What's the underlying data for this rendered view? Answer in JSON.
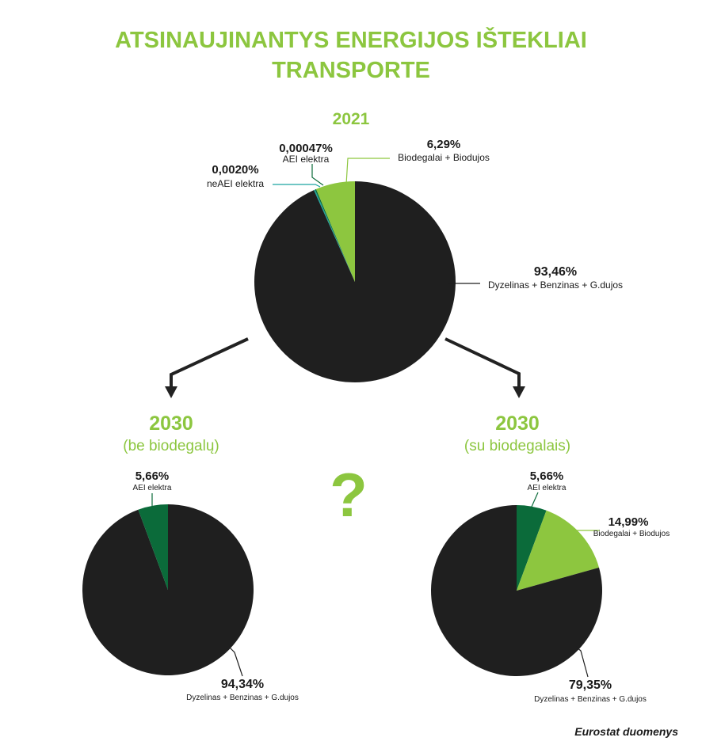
{
  "title_line1": "ATSINAUJINANTYS ENERGIJOS IŠTEKLIAI",
  "title_line2": "TRANSPORTE",
  "source": "Eurostat duomenys",
  "question_mark": "?",
  "colors": {
    "title_green": "#8cc63f",
    "fossil": "#1f1f1f",
    "biofuel": "#8dc63f",
    "renewable_electricity": "#0b6b3a",
    "non_renewable_electricity": "#1aa5a0",
    "arrow": "#222222"
  },
  "chart_data": [
    {
      "type": "pie",
      "title": "2021",
      "subtitle": "",
      "slices": [
        {
          "key": "ael",
          "pct_label": "0,00047%",
          "label": "AEI elektra",
          "value": 0.00047,
          "color": "#0b6b3a"
        },
        {
          "key": "neael",
          "pct_label": "0,0020%",
          "label": "neAEI elektra",
          "value": 0.002,
          "color": "#1aa5a0"
        },
        {
          "key": "bio",
          "pct_label": "6,29%",
          "label": "Biodegalai + Biodujos",
          "value": 6.29,
          "color": "#8dc63f"
        },
        {
          "key": "fossil",
          "pct_label": "93,46%",
          "label": "Dyzelinas + Benzinas + G.dujos",
          "value": 93.46,
          "color": "#1f1f1f"
        }
      ]
    },
    {
      "type": "pie",
      "title": "2030",
      "subtitle": "(be biodegalų)",
      "slices": [
        {
          "key": "ael",
          "pct_label": "5,66%",
          "label": "AEI elektra",
          "value": 5.66,
          "color": "#0b6b3a"
        },
        {
          "key": "fossil",
          "pct_label": "94,34%",
          "label": "Dyzelinas + Benzinas + G.dujos",
          "value": 94.34,
          "color": "#1f1f1f"
        }
      ]
    },
    {
      "type": "pie",
      "title": "2030",
      "subtitle": "(su biodegalais)",
      "slices": [
        {
          "key": "ael",
          "pct_label": "5,66%",
          "label": "AEI elektra",
          "value": 5.66,
          "color": "#0b6b3a"
        },
        {
          "key": "bio",
          "pct_label": "14,99%",
          "label": "Biodegalai + Biodujos",
          "value": 14.99,
          "color": "#8dc63f"
        },
        {
          "key": "fossil",
          "pct_label": "79,35%",
          "label": "Dyzelinas + Benzinas + G.dujos",
          "value": 79.35,
          "color": "#1f1f1f"
        }
      ]
    }
  ]
}
